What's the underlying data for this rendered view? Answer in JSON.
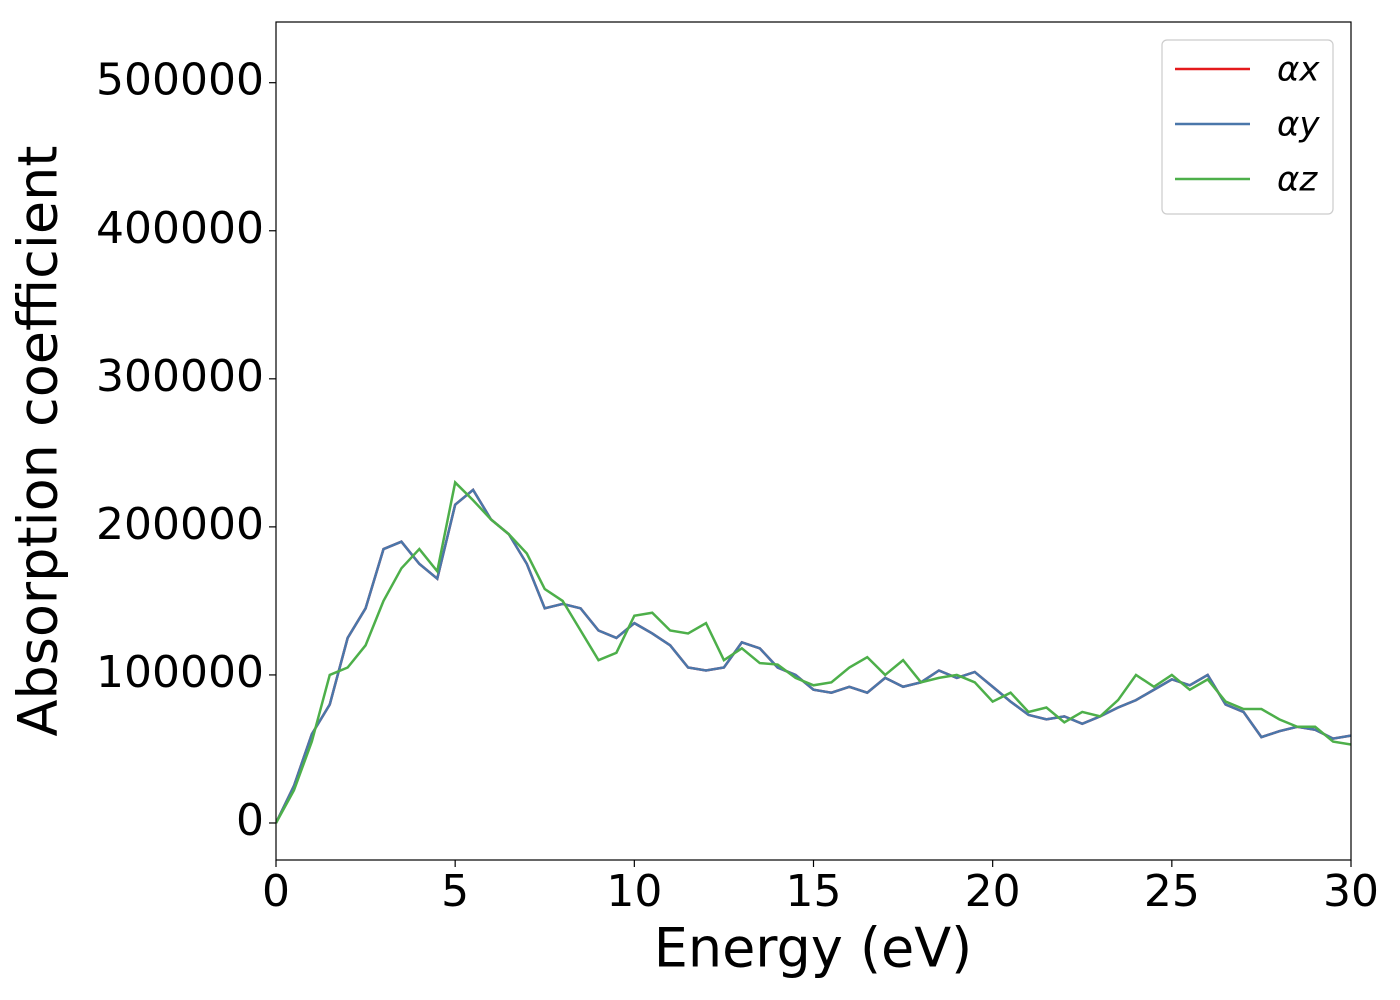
{
  "chart_data": {
    "type": "line",
    "xlabel": "Energy (eV)",
    "ylabel": "Absorption coefficient",
    "x": [
      0,
      0.5,
      1,
      1.5,
      2,
      2.5,
      3,
      3.5,
      4,
      4.5,
      5,
      5.5,
      6,
      6.5,
      7,
      7.5,
      8,
      8.5,
      9,
      9.5,
      10,
      10.5,
      11,
      11.5,
      12,
      12.5,
      13,
      13.5,
      14,
      14.5,
      15,
      15.5,
      16,
      16.5,
      17,
      17.5,
      18,
      18.5,
      19,
      19.5,
      20,
      20.5,
      21,
      21.5,
      22,
      22.5,
      23,
      23.5,
      24,
      24.5,
      25,
      25.5,
      26,
      26.5,
      27,
      27.5,
      28,
      28.5,
      29,
      29.5,
      30
    ],
    "series": [
      {
        "name": "αx",
        "color": "#e41a1c",
        "values": [
          0,
          25000,
          60000,
          80000,
          125000,
          145000,
          185000,
          190000,
          175000,
          165000,
          215000,
          225000,
          205000,
          195000,
          175000,
          145000,
          148000,
          145000,
          130000,
          125000,
          135000,
          128000,
          120000,
          105000,
          103000,
          105000,
          122000,
          118000,
          105000,
          100000,
          90000,
          88000,
          92000,
          88000,
          98000,
          92000,
          95000,
          103000,
          98000,
          102000,
          92000,
          82000,
          73000,
          70000,
          72000,
          67000,
          72000,
          78000,
          83000,
          90000,
          97000,
          93000,
          100000,
          80000,
          75000,
          58000,
          62000,
          65000,
          63000,
          57000,
          59000
        ]
      },
      {
        "name": "αy",
        "color": "#4a77aa",
        "values": [
          0,
          25000,
          60000,
          80000,
          125000,
          145000,
          185000,
          190000,
          175000,
          165000,
          215000,
          225000,
          205000,
          195000,
          175000,
          145000,
          148000,
          145000,
          130000,
          125000,
          135000,
          128000,
          120000,
          105000,
          103000,
          105000,
          122000,
          118000,
          105000,
          100000,
          90000,
          88000,
          92000,
          88000,
          98000,
          92000,
          95000,
          103000,
          98000,
          102000,
          92000,
          82000,
          73000,
          70000,
          72000,
          67000,
          72000,
          78000,
          83000,
          90000,
          97000,
          93000,
          100000,
          80000,
          75000,
          58000,
          62000,
          65000,
          63000,
          57000,
          59000
        ]
      },
      {
        "name": "αz",
        "color": "#4daf4a",
        "values": [
          0,
          22000,
          55000,
          100000,
          105000,
          120000,
          150000,
          172000,
          185000,
          170000,
          230000,
          218000,
          205000,
          195000,
          182000,
          158000,
          150000,
          130000,
          110000,
          115000,
          140000,
          142000,
          130000,
          128000,
          135000,
          110000,
          118000,
          108000,
          107000,
          98000,
          93000,
          95000,
          105000,
          112000,
          100000,
          110000,
          95000,
          98000,
          100000,
          95000,
          82000,
          88000,
          75000,
          78000,
          68000,
          75000,
          72000,
          83000,
          100000,
          92000,
          100000,
          90000,
          97000,
          82000,
          77000,
          77000,
          70000,
          65000,
          65000,
          55000,
          53000
        ]
      }
    ],
    "xlim": [
      0,
      30
    ],
    "xticks": [
      0,
      5,
      10,
      15,
      20,
      25,
      30
    ],
    "ylim": [
      -25000,
      541000
    ],
    "yticks": [
      0,
      100000,
      200000,
      300000,
      400000,
      500000
    ],
    "legend": "upper right"
  }
}
